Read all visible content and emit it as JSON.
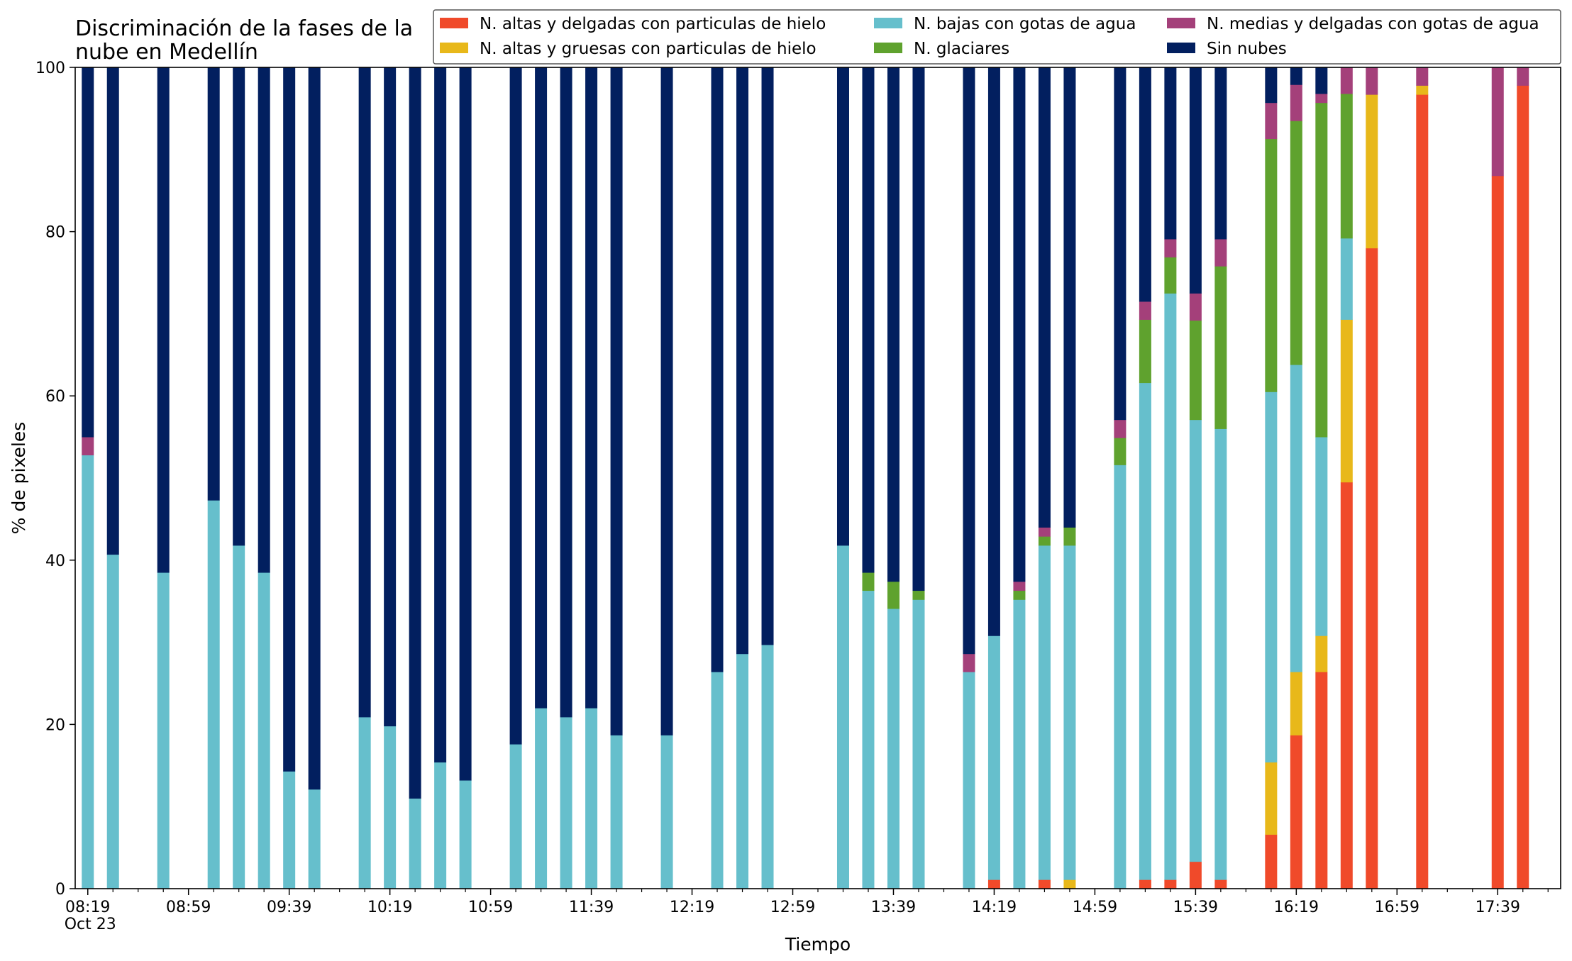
{
  "chart_data": {
    "type": "bar",
    "stacked": true,
    "title_lines": [
      "Discriminación de la fases de la",
      "nube en Medellín"
    ],
    "xlabel": "Tiempo",
    "ylabel": "% de pixeles",
    "ylim": [
      0,
      100
    ],
    "yticks": [
      0,
      20,
      40,
      60,
      80,
      100
    ],
    "x_range_minutes": [
      "08:14",
      "18:04"
    ],
    "x_major_ticks": [
      {
        "time": "08:19",
        "label": "08:19",
        "sublabel": "Oct 23"
      },
      {
        "time": "08:59",
        "label": "08:59"
      },
      {
        "time": "09:39",
        "label": "09:39"
      },
      {
        "time": "10:19",
        "label": "10:19"
      },
      {
        "time": "10:59",
        "label": "10:59"
      },
      {
        "time": "11:39",
        "label": "11:39"
      },
      {
        "time": "12:19",
        "label": "12:19"
      },
      {
        "time": "12:59",
        "label": "12:59"
      },
      {
        "time": "13:39",
        "label": "13:39"
      },
      {
        "time": "14:19",
        "label": "14:19"
      },
      {
        "time": "14:59",
        "label": "14:59"
      },
      {
        "time": "15:39",
        "label": "15:39"
      },
      {
        "time": "16:19",
        "label": "16:19"
      },
      {
        "time": "16:59",
        "label": "16:59"
      },
      {
        "time": "17:39",
        "label": "17:39"
      }
    ],
    "legend_position": "top-right",
    "legend_columns": 3,
    "grid": false,
    "series": [
      {
        "key": "thin_ice",
        "name": "N. altas y delgadas con particulas de hielo",
        "color": "#f04a2a"
      },
      {
        "key": "thick_ice",
        "name": "N. altas y gruesas con particulas de hielo",
        "color": "#e8b81a"
      },
      {
        "key": "low_water",
        "name": "N. bajas con gotas de agua",
        "color": "#66bfcc"
      },
      {
        "key": "glacial",
        "name": "N. glaciares",
        "color": "#5fa22e"
      },
      {
        "key": "mid_water",
        "name": "N. medias y delgadas con gotas de agua",
        "color": "#a4407a"
      },
      {
        "key": "clear",
        "name": "Sin nubes",
        "color": "#021f5f"
      }
    ],
    "bars": [
      {
        "time": "08:19",
        "thin_ice": 0,
        "thick_ice": 0,
        "low_water": 52.8,
        "glacial": 0,
        "mid_water": 2.2,
        "clear": 45.0
      },
      {
        "time": "08:29",
        "thin_ice": 0,
        "thick_ice": 0,
        "low_water": 40.7,
        "glacial": 0,
        "mid_water": 0,
        "clear": 59.3
      },
      {
        "time": "08:49",
        "thin_ice": 0,
        "thick_ice": 0,
        "low_water": 38.5,
        "glacial": 0,
        "mid_water": 0,
        "clear": 61.5
      },
      {
        "time": "09:09",
        "thin_ice": 0,
        "thick_ice": 0,
        "low_water": 47.3,
        "glacial": 0,
        "mid_water": 0,
        "clear": 52.7
      },
      {
        "time": "09:19",
        "thin_ice": 0,
        "thick_ice": 0,
        "low_water": 41.8,
        "glacial": 0,
        "mid_water": 0,
        "clear": 58.2
      },
      {
        "time": "09:29",
        "thin_ice": 0,
        "thick_ice": 0,
        "low_water": 38.5,
        "glacial": 0,
        "mid_water": 0,
        "clear": 61.5
      },
      {
        "time": "09:39",
        "thin_ice": 0,
        "thick_ice": 0,
        "low_water": 14.3,
        "glacial": 0,
        "mid_water": 0,
        "clear": 85.7
      },
      {
        "time": "09:49",
        "thin_ice": 0,
        "thick_ice": 0,
        "low_water": 12.1,
        "glacial": 0,
        "mid_water": 0,
        "clear": 87.9
      },
      {
        "time": "10:09",
        "thin_ice": 0,
        "thick_ice": 0,
        "low_water": 20.9,
        "glacial": 0,
        "mid_water": 0,
        "clear": 79.1
      },
      {
        "time": "10:19",
        "thin_ice": 0,
        "thick_ice": 0,
        "low_water": 19.8,
        "glacial": 0,
        "mid_water": 0,
        "clear": 80.2
      },
      {
        "time": "10:29",
        "thin_ice": 0,
        "thick_ice": 0,
        "low_water": 11.0,
        "glacial": 0,
        "mid_water": 0,
        "clear": 89.0
      },
      {
        "time": "10:39",
        "thin_ice": 0,
        "thick_ice": 0,
        "low_water": 15.4,
        "glacial": 0,
        "mid_water": 0,
        "clear": 84.6
      },
      {
        "time": "10:49",
        "thin_ice": 0,
        "thick_ice": 0,
        "low_water": 13.2,
        "glacial": 0,
        "mid_water": 0,
        "clear": 86.8
      },
      {
        "time": "11:09",
        "thin_ice": 0,
        "thick_ice": 0,
        "low_water": 17.6,
        "glacial": 0,
        "mid_water": 0,
        "clear": 82.4
      },
      {
        "time": "11:19",
        "thin_ice": 0,
        "thick_ice": 0,
        "low_water": 22.0,
        "glacial": 0,
        "mid_water": 0,
        "clear": 78.0
      },
      {
        "time": "11:29",
        "thin_ice": 0,
        "thick_ice": 0,
        "low_water": 20.9,
        "glacial": 0,
        "mid_water": 0,
        "clear": 79.1
      },
      {
        "time": "11:39",
        "thin_ice": 0,
        "thick_ice": 0,
        "low_water": 22.0,
        "glacial": 0,
        "mid_water": 0,
        "clear": 78.0
      },
      {
        "time": "11:49",
        "thin_ice": 0,
        "thick_ice": 0,
        "low_water": 18.7,
        "glacial": 0,
        "mid_water": 0,
        "clear": 81.3
      },
      {
        "time": "12:09",
        "thin_ice": 0,
        "thick_ice": 0,
        "low_water": 18.7,
        "glacial": 0,
        "mid_water": 0,
        "clear": 81.3
      },
      {
        "time": "12:29",
        "thin_ice": 0,
        "thick_ice": 0,
        "low_water": 26.4,
        "glacial": 0,
        "mid_water": 0,
        "clear": 73.6
      },
      {
        "time": "12:39",
        "thin_ice": 0,
        "thick_ice": 0,
        "low_water": 28.6,
        "glacial": 0,
        "mid_water": 0,
        "clear": 71.4
      },
      {
        "time": "12:49",
        "thin_ice": 0,
        "thick_ice": 0,
        "low_water": 29.7,
        "glacial": 0,
        "mid_water": 0,
        "clear": 70.3
      },
      {
        "time": "13:19",
        "thin_ice": 0,
        "thick_ice": 0,
        "low_water": 41.8,
        "glacial": 0,
        "mid_water": 0,
        "clear": 58.2
      },
      {
        "time": "13:29",
        "thin_ice": 0,
        "thick_ice": 0,
        "low_water": 36.3,
        "glacial": 2.2,
        "mid_water": 0,
        "clear": 61.5
      },
      {
        "time": "13:39",
        "thin_ice": 0,
        "thick_ice": 0,
        "low_water": 34.1,
        "glacial": 3.3,
        "mid_water": 0,
        "clear": 62.6
      },
      {
        "time": "13:49",
        "thin_ice": 0,
        "thick_ice": 0,
        "low_water": 35.2,
        "glacial": 1.1,
        "mid_water": 0,
        "clear": 63.7
      },
      {
        "time": "14:09",
        "thin_ice": 0,
        "thick_ice": 0,
        "low_water": 26.4,
        "glacial": 0,
        "mid_water": 2.2,
        "clear": 71.4
      },
      {
        "time": "14:19",
        "thin_ice": 1.1,
        "thick_ice": 0,
        "low_water": 29.7,
        "glacial": 0,
        "mid_water": 0,
        "clear": 69.2
      },
      {
        "time": "14:29",
        "thin_ice": 0,
        "thick_ice": 0,
        "low_water": 35.2,
        "glacial": 1.1,
        "mid_water": 1.1,
        "clear": 62.6
      },
      {
        "time": "14:39",
        "thin_ice": 1.1,
        "thick_ice": 0,
        "low_water": 40.7,
        "glacial": 1.1,
        "mid_water": 1.1,
        "clear": 56.0
      },
      {
        "time": "14:49",
        "thin_ice": 0,
        "thick_ice": 1.1,
        "low_water": 40.7,
        "glacial": 2.2,
        "mid_water": 0,
        "clear": 56.0
      },
      {
        "time": "15:09",
        "thin_ice": 0,
        "thick_ice": 0,
        "low_water": 51.6,
        "glacial": 3.3,
        "mid_water": 2.2,
        "clear": 42.9
      },
      {
        "time": "15:19",
        "thin_ice": 1.1,
        "thick_ice": 0,
        "low_water": 60.5,
        "glacial": 7.7,
        "mid_water": 2.2,
        "clear": 28.5
      },
      {
        "time": "15:29",
        "thin_ice": 1.1,
        "thick_ice": 0,
        "low_water": 71.4,
        "glacial": 4.4,
        "mid_water": 2.2,
        "clear": 20.9
      },
      {
        "time": "15:39",
        "thin_ice": 3.3,
        "thick_ice": 0,
        "low_water": 53.8,
        "glacial": 12.1,
        "mid_water": 3.3,
        "clear": 27.5
      },
      {
        "time": "15:49",
        "thin_ice": 1.1,
        "thick_ice": 0,
        "low_water": 54.9,
        "glacial": 19.8,
        "mid_water": 3.3,
        "clear": 20.9
      },
      {
        "time": "16:09",
        "thin_ice": 6.6,
        "thick_ice": 8.8,
        "low_water": 45.1,
        "glacial": 30.8,
        "mid_water": 4.4,
        "clear": 4.3
      },
      {
        "time": "16:19",
        "thin_ice": 18.7,
        "thick_ice": 7.7,
        "low_water": 37.4,
        "glacial": 29.7,
        "mid_water": 4.4,
        "clear": 2.1
      },
      {
        "time": "16:29",
        "thin_ice": 26.4,
        "thick_ice": 4.4,
        "low_water": 24.2,
        "glacial": 40.7,
        "mid_water": 1.1,
        "clear": 3.2
      },
      {
        "time": "16:39",
        "thin_ice": 49.5,
        "thick_ice": 19.8,
        "low_water": 9.9,
        "glacial": 17.6,
        "mid_water": 3.2,
        "clear": 0
      },
      {
        "time": "16:49",
        "thin_ice": 78.0,
        "thick_ice": 18.7,
        "low_water": 0,
        "glacial": 0,
        "mid_water": 3.3,
        "clear": 0
      },
      {
        "time": "17:09",
        "thin_ice": 96.7,
        "thick_ice": 1.1,
        "low_water": 0,
        "glacial": 0,
        "mid_water": 2.2,
        "clear": 0
      },
      {
        "time": "17:39",
        "thin_ice": 86.8,
        "thick_ice": 0,
        "low_water": 0,
        "glacial": 0,
        "mid_water": 13.2,
        "clear": 0
      },
      {
        "time": "17:49",
        "thin_ice": 97.8,
        "thick_ice": 0,
        "low_water": 0,
        "glacial": 0,
        "mid_water": 2.2,
        "clear": 0
      }
    ]
  }
}
